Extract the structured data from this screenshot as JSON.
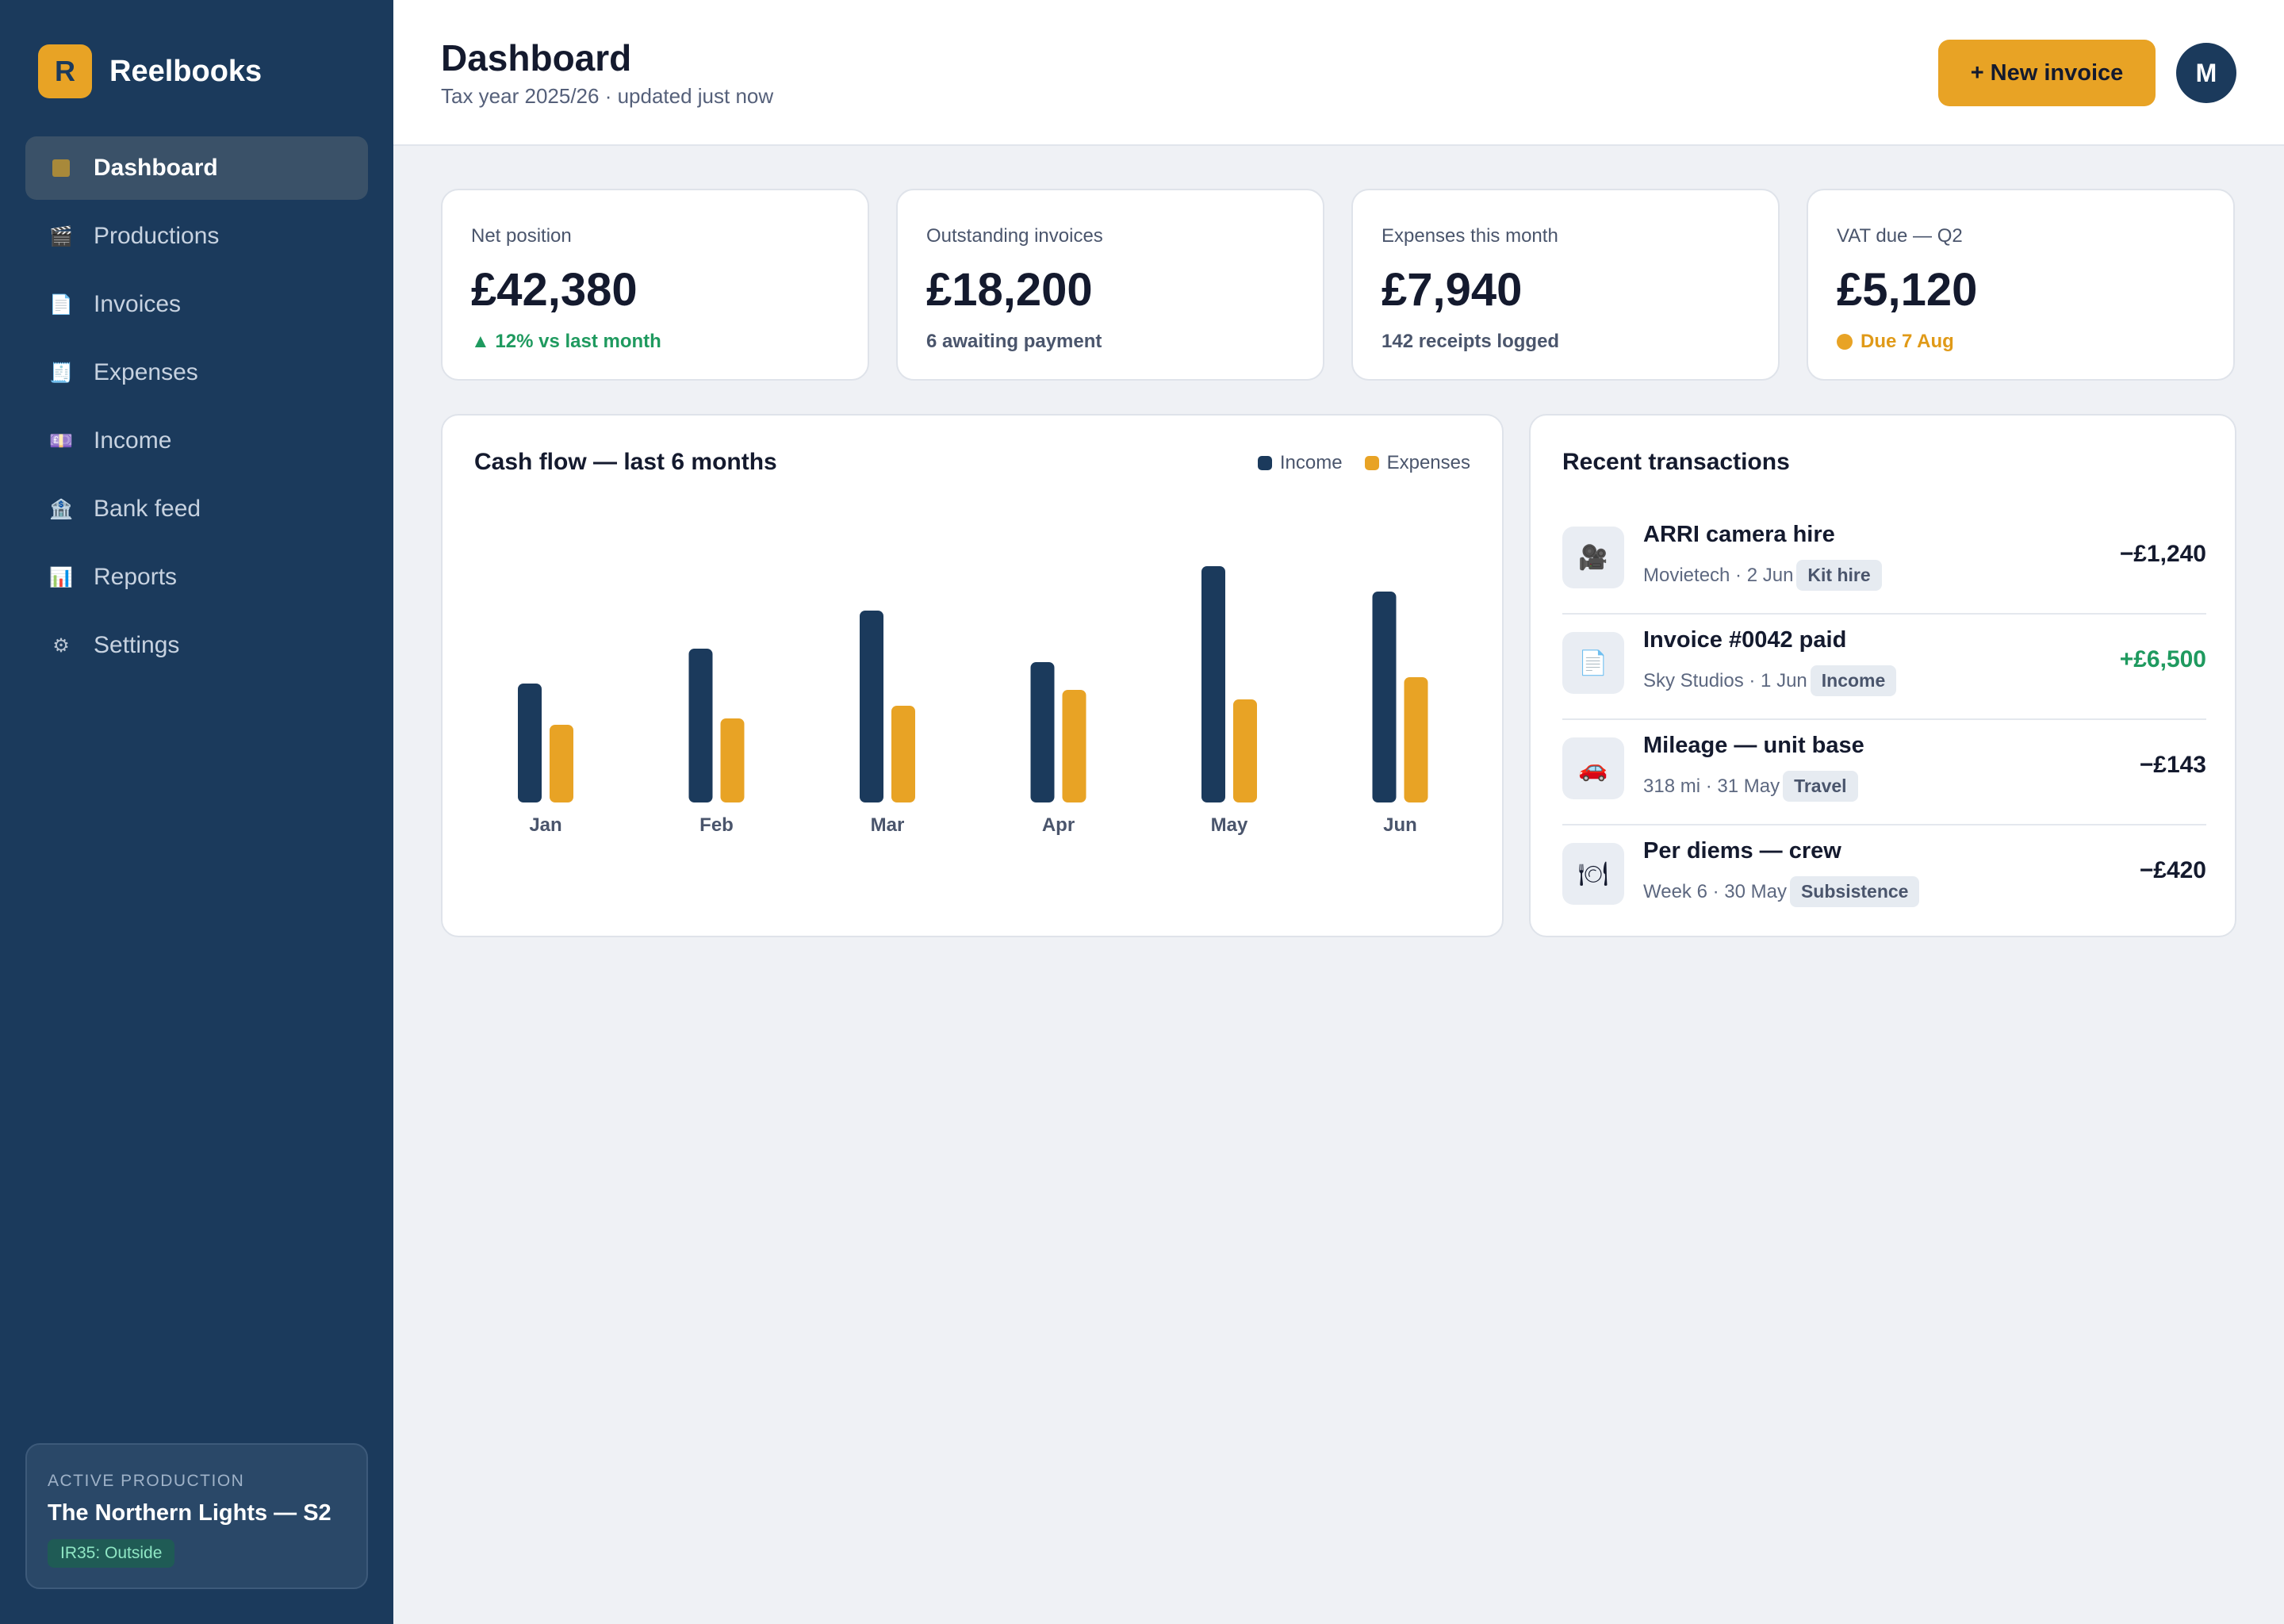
{
  "app": {
    "name": "Reelbooks",
    "logo_letter": "R"
  },
  "sidebar": {
    "items": [
      {
        "label": "Dashboard",
        "icon": "dashboard-square-icon",
        "active": true
      },
      {
        "label": "Productions",
        "icon": "clapperboard-icon",
        "glyph": "🎬"
      },
      {
        "label": "Invoices",
        "icon": "document-icon",
        "glyph": "📄"
      },
      {
        "label": "Expenses",
        "icon": "receipt-icon",
        "glyph": "🧾"
      },
      {
        "label": "Income",
        "icon": "cash-icon",
        "glyph": "💷"
      },
      {
        "label": "Bank feed",
        "icon": "bank-icon",
        "glyph": "🏦"
      },
      {
        "label": "Reports",
        "icon": "bar-chart-icon",
        "glyph": "📊"
      },
      {
        "label": "Settings",
        "icon": "gear-icon",
        "glyph": "⚙"
      }
    ],
    "active_production": {
      "kicker": "ACTIVE PRODUCTION",
      "title": "The Northern Lights — S2",
      "badge": "IR35: Outside"
    }
  },
  "header": {
    "title": "Dashboard",
    "subtitle": "Tax year 2025/26 · updated just now",
    "new_invoice_label": "+ New invoice",
    "avatar_initial": "M"
  },
  "stats": [
    {
      "label": "Net position",
      "value": "£42,380",
      "note": "▲ 12% vs last month",
      "tone": "up"
    },
    {
      "label": "Outstanding invoices",
      "value": "£18,200",
      "note": "6 awaiting payment",
      "tone": "neutral"
    },
    {
      "label": "Expenses this month",
      "value": "£7,940",
      "note": "142 receipts logged",
      "tone": "neutral"
    },
    {
      "label": "VAT due — Q2",
      "value": "£5,120",
      "note": "Due 7 Aug",
      "tone": "warn"
    }
  ],
  "colors": {
    "income": "#1b3a5c",
    "expenses": "#e8a325",
    "positive": "#1f9a5f",
    "accent": "#e8a325"
  },
  "chart_data": {
    "type": "bar",
    "title": "Cash flow — last 6 months",
    "categories": [
      "Jan",
      "Feb",
      "Mar",
      "Apr",
      "May",
      "Jun"
    ],
    "series": [
      {
        "name": "Income",
        "color": "#1b3a5c",
        "values": [
          150,
          194,
          242,
          177,
          298,
          266
        ]
      },
      {
        "name": "Expenses",
        "color": "#e8a325",
        "values": [
          98,
          106,
          122,
          142,
          130,
          158
        ]
      }
    ],
    "ylim": [
      0,
      300
    ],
    "grid": false,
    "legend": "top-right"
  },
  "transactions": {
    "title": "Recent transactions",
    "items": [
      {
        "title": "ARRI camera hire",
        "meta": "Movietech · 2 Jun",
        "tag": "Kit hire",
        "amount": "−£1,240",
        "positive": false,
        "icon": "video-camera-icon",
        "glyph": "🎥"
      },
      {
        "title": "Invoice #0042 paid",
        "meta": "Sky Studios · 1 Jun",
        "tag": "Income",
        "amount": "+£6,500",
        "positive": true,
        "icon": "document-icon",
        "glyph": "📄"
      },
      {
        "title": "Mileage — unit base",
        "meta": "318 mi · 31 May",
        "tag": "Travel",
        "amount": "−£143",
        "positive": false,
        "icon": "car-icon",
        "glyph": "🚗"
      },
      {
        "title": "Per diems — crew",
        "meta": "Week 6 · 30 May",
        "tag": "Subsistence",
        "amount": "−£420",
        "positive": false,
        "icon": "plate-cutlery-icon",
        "glyph": "🍽"
      }
    ]
  }
}
